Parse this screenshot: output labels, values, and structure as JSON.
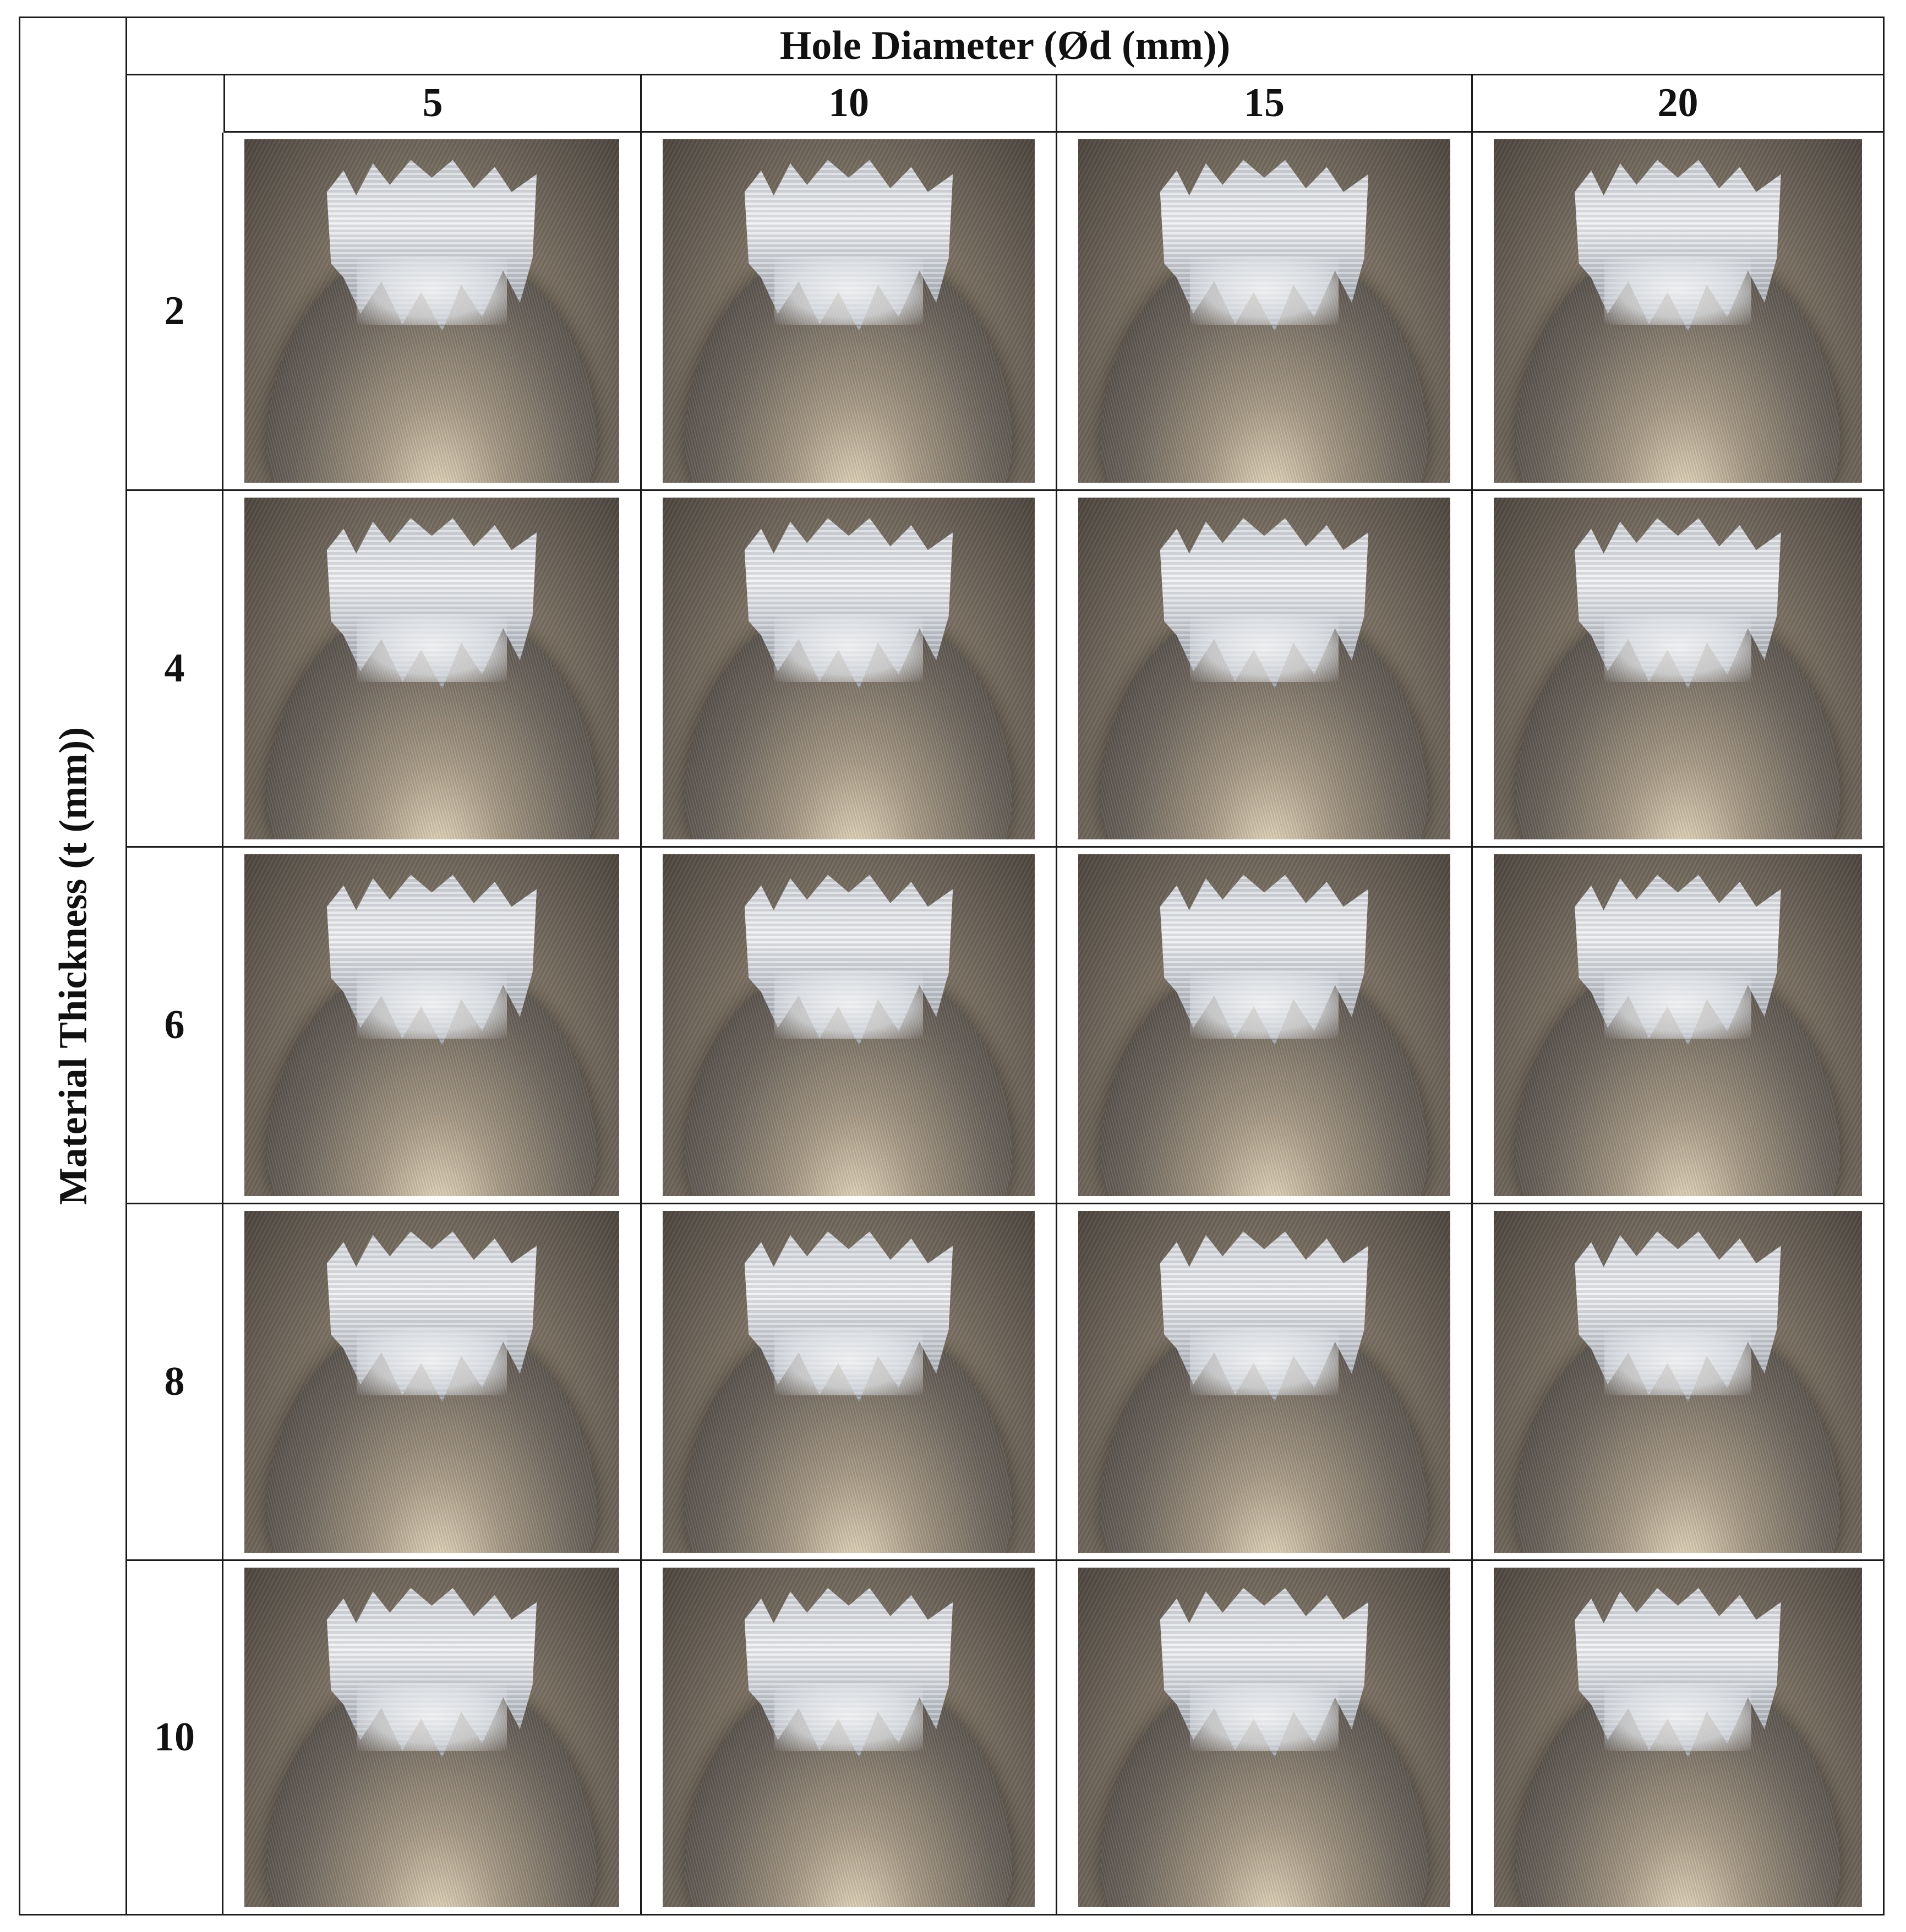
{
  "header": "Hole Diameter (Ød (mm))",
  "y_axis_label": "Material Thickness (t (mm))",
  "columns": [
    "5",
    "10",
    "15",
    "20"
  ],
  "rows": [
    "2",
    "4",
    "6",
    "8",
    "10"
  ]
}
